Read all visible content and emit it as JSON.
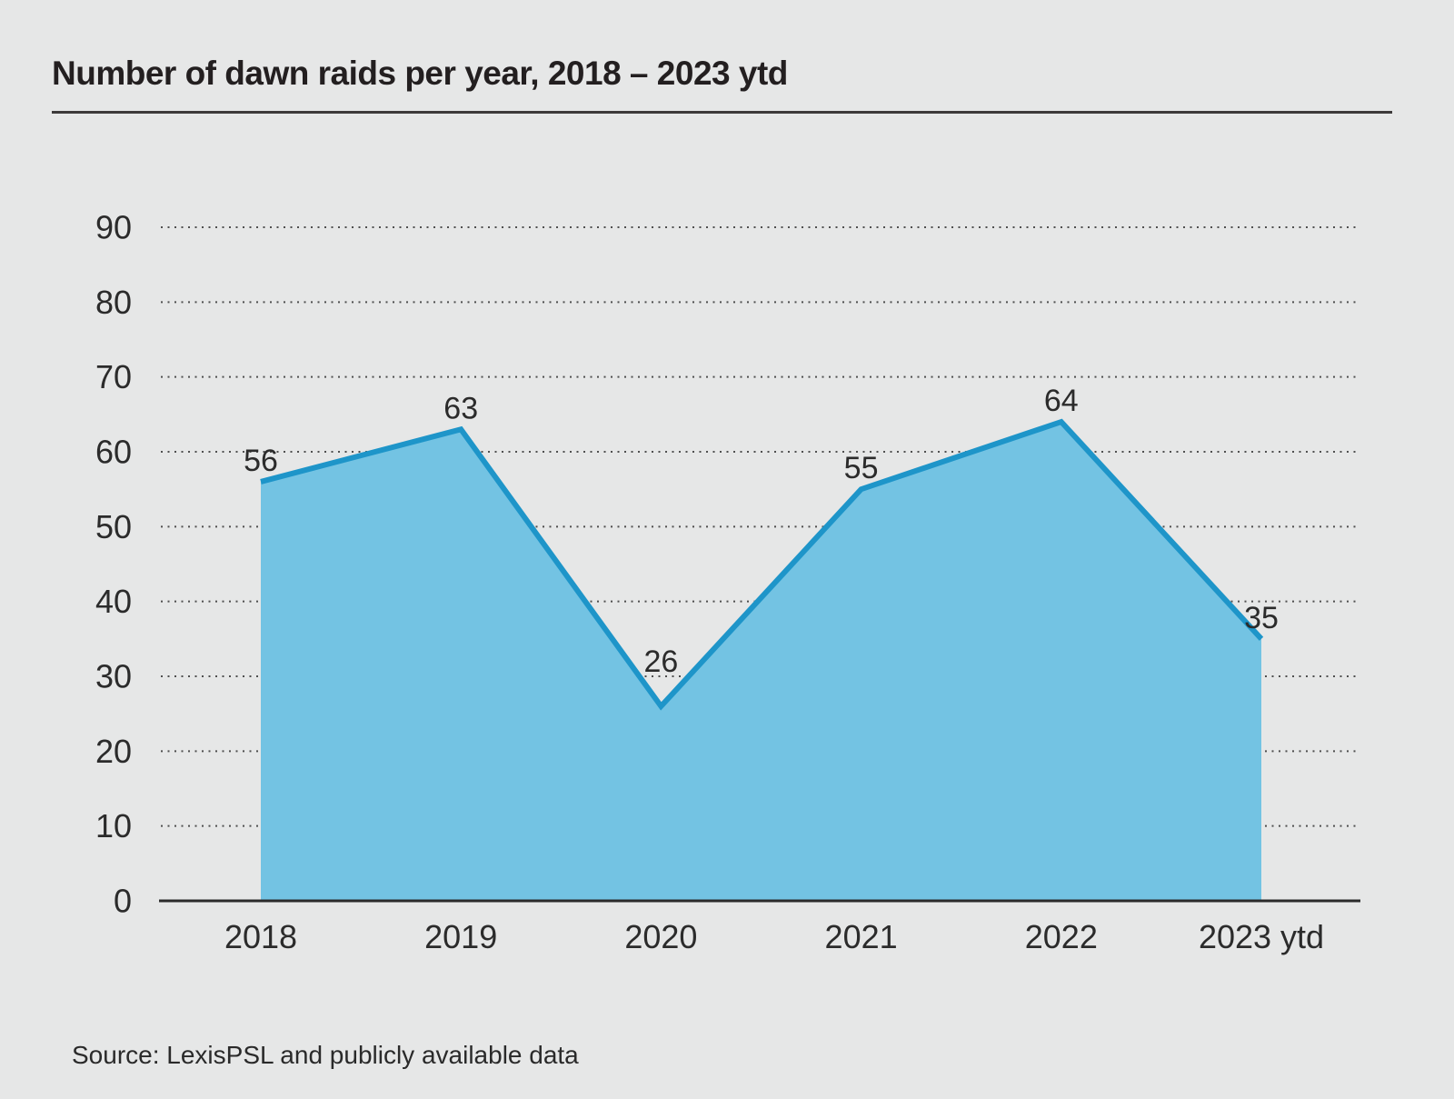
{
  "page": {
    "title": "Number of dawn raids per year, 2018 – 2023 ytd",
    "source": "Source: LexisPSL and publicly available data"
  },
  "colors": {
    "background": "#e6e7e7",
    "area_fill": "#73c3e3",
    "line_stroke": "#1e95c9",
    "grid_dots": "#4f4f4f",
    "axis_line": "#2b2b2b",
    "title_text": "#231f20",
    "label_text": "#2b2b2b",
    "title_rule": "#3d3a3a"
  },
  "chart_data": {
    "type": "area",
    "title": "Number of dawn raids per year, 2018 – 2023 ytd",
    "categories": [
      "2018",
      "2019",
      "2020",
      "2021",
      "2022",
      "2023 ytd"
    ],
    "values": [
      56,
      63,
      26,
      55,
      64,
      35
    ],
    "xlabel": "",
    "ylabel": "",
    "ylim": [
      0,
      90
    ],
    "ytick_step": 10,
    "yticks": [
      0,
      10,
      20,
      30,
      40,
      50,
      60,
      70,
      80,
      90
    ],
    "grid": "horizontal-dotted",
    "legend": "none",
    "data_labels": [
      56,
      63,
      26,
      55,
      64,
      35
    ],
    "source": "Source: LexisPSL and publicly available data"
  }
}
